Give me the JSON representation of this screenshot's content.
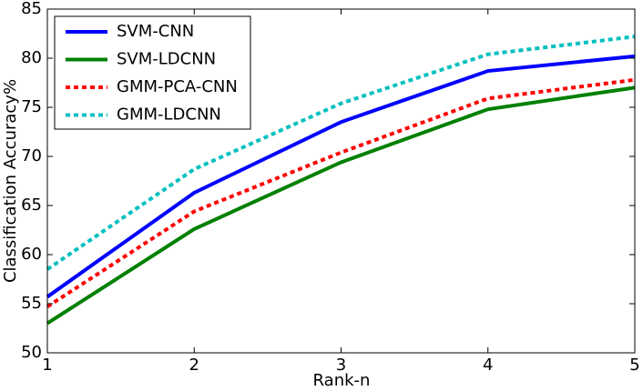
{
  "chart_data": {
    "type": "line",
    "x_label": "Rank-n",
    "y_label": "Classification Accuracy%",
    "x": [
      1,
      2,
      3,
      4,
      5
    ],
    "xlim": [
      1,
      5
    ],
    "xticks": [
      1,
      2,
      3,
      4,
      5
    ],
    "ylim": [
      50,
      85
    ],
    "yticks": [
      50,
      55,
      60,
      65,
      70,
      75,
      80,
      85
    ],
    "legend": "upper left",
    "series": [
      {
        "name": "SVM-CNN",
        "color": "#0000ff",
        "linestyle": "solid",
        "values": [
          55.7,
          66.3,
          73.5,
          78.7,
          80.2
        ]
      },
      {
        "name": "SVM-LDCNN",
        "color": "#008000",
        "linestyle": "solid",
        "values": [
          53.0,
          62.6,
          69.4,
          74.8,
          77.0
        ]
      },
      {
        "name": "GMM-PCA-CNN",
        "color": "#ff0000",
        "linestyle": "dotted",
        "values": [
          54.7,
          64.4,
          70.4,
          75.9,
          77.8
        ]
      },
      {
        "name": "GMM-LDCNN",
        "color": "#00bfbf",
        "linestyle": "dotted",
        "values": [
          58.5,
          68.7,
          75.4,
          80.4,
          82.2
        ]
      }
    ]
  }
}
